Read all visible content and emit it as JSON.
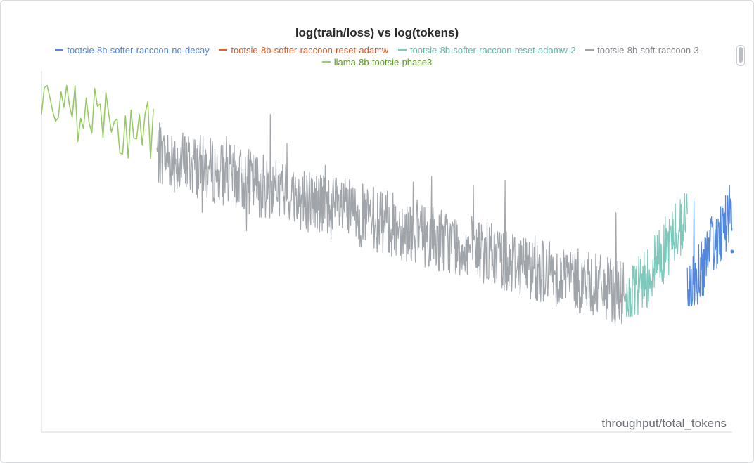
{
  "chart_data": {
    "type": "line",
    "title": "log(train/loss) vs log(tokens)",
    "xlabel": "throughput/total_tokens",
    "ylabel": "",
    "grid": false,
    "legend_placement": "top-center",
    "series": [
      {
        "name": "tootsie-8b-softer-raccoon-no-decay",
        "color": "#5387dd",
        "x_range": [
          0.935,
          1.0
        ],
        "y_level": [
          0.38,
          0.62
        ],
        "y_extent": [
          0.35,
          0.7
        ],
        "values_note": ""
      },
      {
        "name": "tootsie-8b-softer-raccoon-reset-adamw",
        "color": "#e2622d",
        "x_range": [],
        "y_level": [],
        "y_extent": []
      },
      {
        "name": "tootsie-8b-softer-raccoon-reset-adamw-2",
        "color": "#7dcabd",
        "x_range": [
          0.845,
          0.935
        ],
        "y_level": [
          0.34,
          0.6
        ],
        "y_extent": [
          0.32,
          0.67
        ]
      },
      {
        "name": "tootsie-8b-soft-raccoon-3",
        "color": "#a0a5ab",
        "x_range": [
          0.167,
          0.845
        ],
        "y_level": [
          0.77,
          0.38
        ],
        "y_extent": [
          0.3,
          1.0
        ]
      },
      {
        "name": "llama-8b-tootsie-phase3",
        "color": "#93c95e",
        "x_range": [
          0.0,
          0.162
        ],
        "y_level": [
          0.92,
          0.82
        ],
        "y_extent": [
          0.68,
          0.96
        ]
      }
    ]
  },
  "legend": [
    {
      "label": "tootsie-8b-softer-raccoon-no-decay",
      "color": "#5387dd"
    },
    {
      "label": "tootsie-8b-softer-raccoon-reset-adamw",
      "color": "#e2622d"
    },
    {
      "label": "tootsie-8b-softer-raccoon-reset-adamw-2",
      "color": "#7dcabd"
    },
    {
      "label": "tootsie-8b-soft-raccoon-3",
      "color": "#a0a5ab"
    },
    {
      "label": "llama-8b-tootsie-phase3",
      "color": "#93c95e"
    }
  ]
}
